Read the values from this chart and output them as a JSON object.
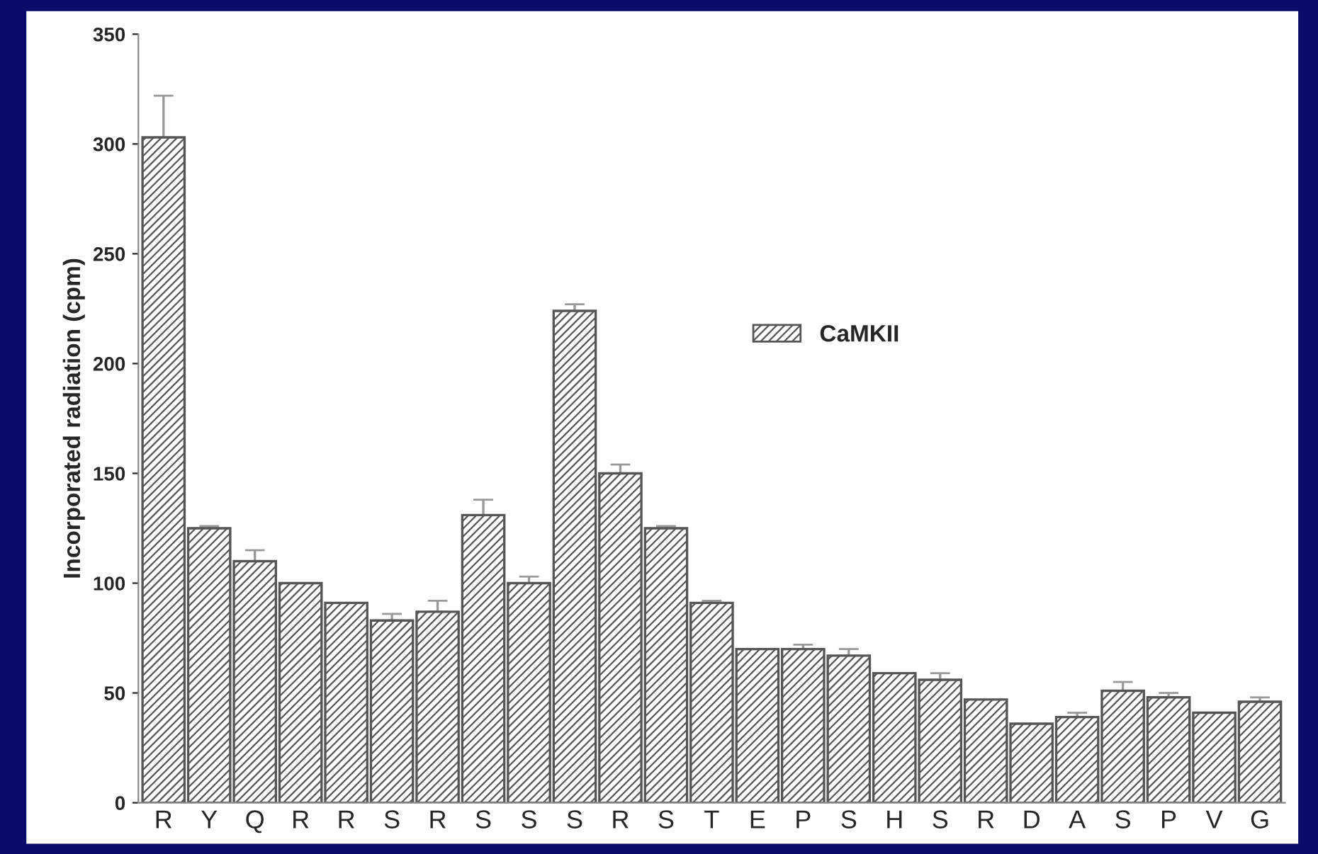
{
  "chart_data": {
    "type": "bar",
    "ylabel": "Incorporated radiation (cpm)",
    "categories": [
      "R",
      "Y",
      "Q",
      "R",
      "R",
      "S",
      "R",
      "S",
      "S",
      "S",
      "R",
      "S",
      "T",
      "E",
      "P",
      "S",
      "H",
      "S",
      "R",
      "D",
      "A",
      "S",
      "P",
      "V",
      "G"
    ],
    "series": [
      {
        "name": "CaMKII",
        "color": "#555555",
        "values": [
          303,
          125,
          110,
          100,
          91,
          83,
          87,
          131,
          100,
          224,
          150,
          125,
          91,
          70,
          70,
          67,
          59,
          56,
          47,
          36,
          39,
          51,
          48,
          41,
          46
        ],
        "errors": [
          19,
          1,
          5,
          null,
          null,
          3,
          5,
          7,
          3,
          3,
          4,
          1,
          1,
          null,
          2,
          3,
          null,
          3,
          null,
          null,
          2,
          4,
          2,
          null,
          2
        ]
      }
    ],
    "ylim": [
      0,
      350
    ],
    "yticks": [
      0,
      50,
      100,
      150,
      200,
      250,
      300,
      350
    ],
    "legend": "top",
    "grid": false
  }
}
